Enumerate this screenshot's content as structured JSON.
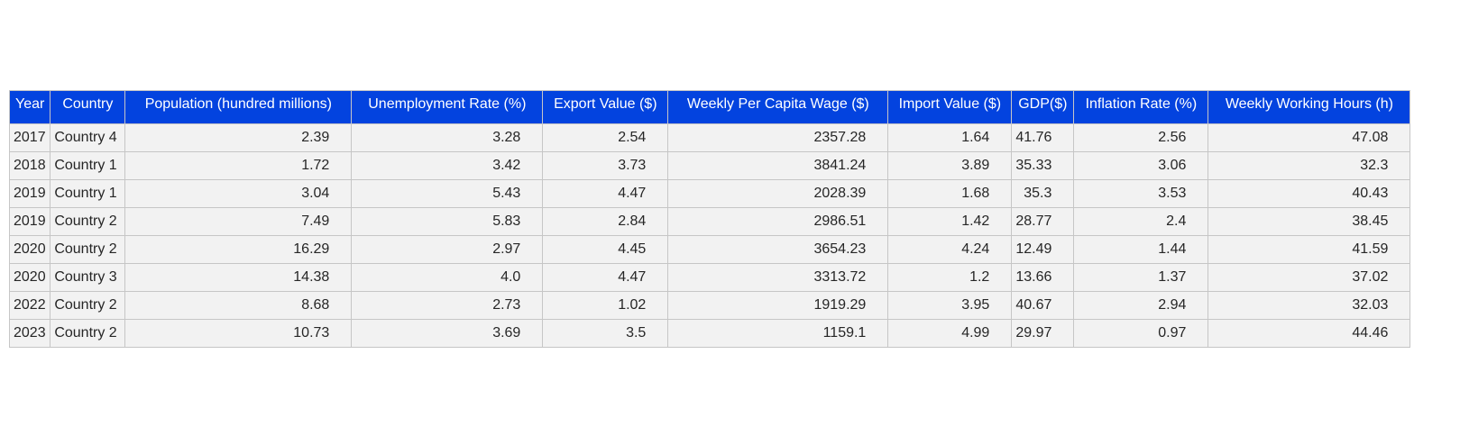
{
  "chart_data": {
    "type": "table",
    "columns": [
      "Year",
      "Country",
      "Population (hundred millions)",
      "Unemployment Rate (%)",
      "Export Value ($)",
      "Weekly Per Capita Wage ($)",
      "Import Value ($)",
      "GDP($)",
      "Inflation Rate (%)",
      "Weekly Working Hours (h)"
    ],
    "rows": [
      [
        "2017",
        "Country 4",
        "2.39",
        "3.28",
        "2.54",
        "2357.28",
        "1.64",
        "41.76",
        "2.56",
        "47.08"
      ],
      [
        "2018",
        "Country 1",
        "1.72",
        "3.42",
        "3.73",
        "3841.24",
        "3.89",
        "35.33",
        "3.06",
        "32.3"
      ],
      [
        "2019",
        "Country 1",
        "3.04",
        "5.43",
        "4.47",
        "2028.39",
        "1.68",
        "35.3",
        "3.53",
        "40.43"
      ],
      [
        "2019",
        "Country 2",
        "7.49",
        "5.83",
        "2.84",
        "2986.51",
        "1.42",
        "28.77",
        "2.4",
        "38.45"
      ],
      [
        "2020",
        "Country 2",
        "16.29",
        "2.97",
        "4.45",
        "3654.23",
        "4.24",
        "12.49",
        "1.44",
        "41.59"
      ],
      [
        "2020",
        "Country 3",
        "14.38",
        "4.0",
        "4.47",
        "3313.72",
        "1.2",
        "13.66",
        "1.37",
        "37.02"
      ],
      [
        "2022",
        "Country 2",
        "8.68",
        "2.73",
        "1.02",
        "1919.29",
        "3.95",
        "40.67",
        "2.94",
        "32.03"
      ],
      [
        "2023",
        "Country 2",
        "10.73",
        "3.69",
        "3.5",
        "1159.1",
        "4.99",
        "29.97",
        "0.97",
        "44.46"
      ]
    ],
    "header_color": "#0343df",
    "header_text_color": "#ffffff",
    "cell_color": "#f2f2f2",
    "border_color": "#c6c6c6"
  }
}
